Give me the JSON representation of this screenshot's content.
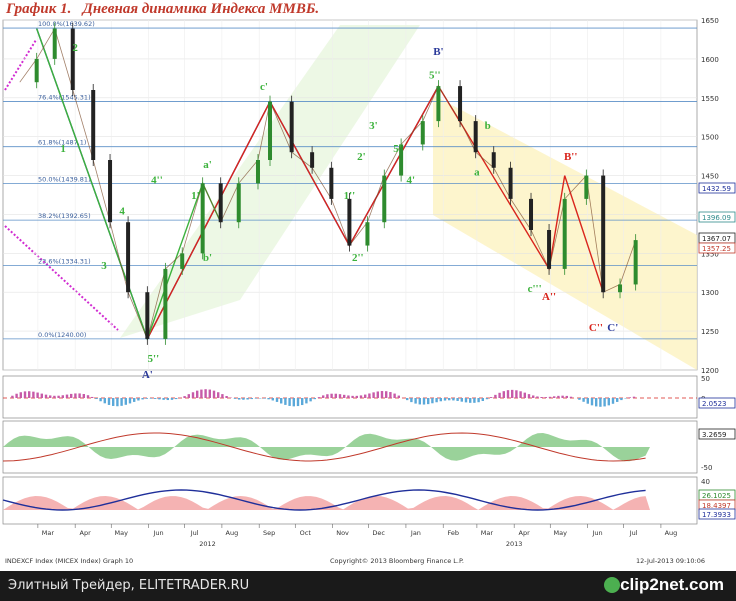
{
  "title": "График 1.   Дневная динамика Индекса ММВБ.",
  "footer": {
    "text": "Элитный Трейдер, ELITETRADER.RU",
    "brand": "clip2net.com"
  },
  "meta": {
    "left": "INDEXCF Index (MICEX Index) Graph 10",
    "center": "Copyright© 2013 Bloomberg Finance L.P.",
    "right": "12-Jul-2013 09:10:06"
  },
  "colors": {
    "up": "#2e8b2e",
    "down": "#222222",
    "red_wave": "#d9251d",
    "green_wave": "#3cb23c",
    "blue_wave": "#2b3a9a",
    "channel_fill": "#fdf3c0",
    "green_channel": "#bfe8a8"
  },
  "chart_data": [
    {
      "type": "line",
      "panel": "price",
      "x": [
        "2012-02-15",
        "2012-02-29",
        "2012-03-15",
        "2012-03-30",
        "2012-04-16",
        "2012-04-30",
        "2012-05-15",
        "2012-05-31",
        "2012-06-15",
        "2012-06-29",
        "2012-07-16",
        "2012-07-31",
        "2012-08-15",
        "2012-08-31",
        "2012-09-10",
        "2012-09-28",
        "2012-10-15",
        "2012-10-31",
        "2012-11-15",
        "2012-11-30",
        "2012-12-14",
        "2012-12-28",
        "2013-01-15",
        "2013-01-28",
        "2013-02-15",
        "2013-02-28",
        "2013-03-15",
        "2013-03-29",
        "2013-04-15",
        "2013-04-30",
        "2013-05-13",
        "2013-05-31",
        "2013-06-14",
        "2013-06-28",
        "2013-07-11"
      ],
      "series": [
        {
          "values": [
            1570,
            1600,
            1639,
            1560,
            1470,
            1390,
            1300,
            1240,
            1330,
            1350,
            1440,
            1390,
            1440,
            1470,
            1545,
            1480,
            1460,
            1420,
            1360,
            1390,
            1450,
            1490,
            1520,
            1565,
            1520,
            1480,
            1460,
            1420,
            1380,
            1330,
            1420,
            1450,
            1300,
            1310,
            1367
          ]
        }
      ],
      "ylim": [
        1200,
        1650
      ],
      "ytick_labels": [
        "1200",
        "1250",
        "1300",
        "1350",
        "1400",
        "1450",
        "1500",
        "1550",
        "1600",
        "1650"
      ],
      "xtick_labels": [
        "Mar",
        "Apr",
        "May",
        "Jun",
        "Jul",
        "Aug",
        "Sep",
        "Oct",
        "Nov",
        "Dec",
        "Jan",
        "Feb",
        "Mar",
        "Apr",
        "May",
        "Jun",
        "Jul",
        "Aug"
      ],
      "year_labels": [
        "2012",
        "2013"
      ],
      "fib_levels": [
        {
          "label": "100.0%(1639.62)",
          "value": 1639.62
        },
        {
          "label": "76.4%(1545.31)",
          "value": 1545.31
        },
        {
          "label": "61.8%(1487.1)",
          "value": 1487.1
        },
        {
          "label": "50.0%(1439.81)",
          "value": 1439.81
        },
        {
          "label": "38.2%(1392.65)",
          "value": 1392.65
        },
        {
          "label": "23.6%(1334.31)",
          "value": 1334.31
        },
        {
          "label": "0.0%(1240.00)",
          "value": 1240.0
        }
      ],
      "right_labels": [
        "1432.59",
        "1396.09",
        "1367.07",
        "1357.25"
      ],
      "wave_labels": [
        "1",
        "2",
        "1'",
        "2'",
        "4",
        "4'",
        "3",
        "5'",
        "5''",
        "A'",
        "a'",
        "b'",
        "c'",
        "B'",
        "a",
        "b",
        "c'''",
        "A''",
        "B''",
        "C''",
        "C'",
        "3'",
        "4''",
        "1''",
        "2''",
        "5''"
      ]
    },
    {
      "type": "bar",
      "panel": "indicator-1",
      "ylim": [
        -50,
        50
      ],
      "ytick_labels": [
        "50",
        "0"
      ],
      "right_labels": [
        "2.0523"
      ]
    },
    {
      "type": "area",
      "panel": "indicator-2",
      "ylim": [
        -50,
        50
      ],
      "ytick_labels": [
        "-50"
      ],
      "right_labels": [
        "3.2659"
      ]
    },
    {
      "type": "area",
      "panel": "indicator-3",
      "ylim": [
        0,
        40
      ],
      "ytick_labels": [
        "40",
        "20"
      ],
      "right_labels": [
        "26.1025",
        "18.4397",
        "17.3933"
      ]
    }
  ]
}
